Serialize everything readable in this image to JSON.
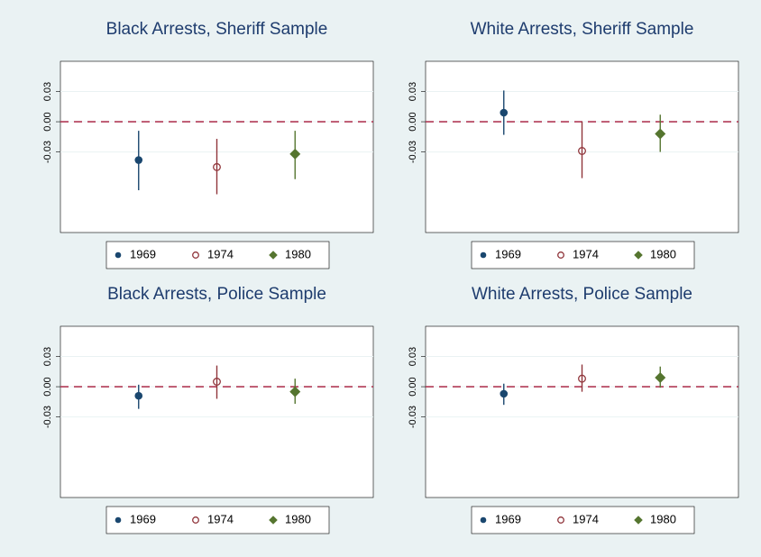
{
  "chart_data": [
    {
      "type": "errorbar",
      "title": "Black Arrests, Sheriff Sample",
      "ylim": [
        -0.11,
        0.06
      ],
      "yticks": [
        -0.03,
        {
          "value": 0,
          "label": "0.00"
        },
        0.03
      ],
      "grid": true,
      "refline": 0,
      "refline_color": "#b03a56",
      "legend_position": "bottom",
      "series": [
        {
          "name": "1969",
          "color": "#1a476f",
          "marker": "filled-circle",
          "values": [
            -0.038
          ],
          "ci_low": [
            -0.068
          ],
          "ci_high": [
            -0.009
          ]
        },
        {
          "name": "1974",
          "color": "#90353b",
          "marker": "hollow-circle",
          "values": [
            -0.045
          ],
          "ci_low": [
            -0.072
          ],
          "ci_high": [
            -0.017
          ]
        },
        {
          "name": "1980",
          "color": "#55752f",
          "marker": "diamond",
          "values": [
            -0.032
          ],
          "ci_low": [
            -0.057
          ],
          "ci_high": [
            -0.009
          ]
        }
      ]
    },
    {
      "type": "errorbar",
      "title": "White Arrests, Sheriff Sample",
      "ylim": [
        -0.11,
        0.06
      ],
      "yticks": [
        -0.03,
        {
          "value": 0,
          "label": "0.00"
        },
        0.03
      ],
      "grid": true,
      "refline": 0,
      "refline_color": "#b03a56",
      "legend_position": "bottom",
      "series": [
        {
          "name": "1969",
          "color": "#1a476f",
          "marker": "filled-circle",
          "values": [
            0.009
          ],
          "ci_low": [
            -0.013
          ],
          "ci_high": [
            0.031
          ]
        },
        {
          "name": "1974",
          "color": "#90353b",
          "marker": "hollow-circle",
          "values": [
            -0.029
          ],
          "ci_low": [
            -0.056
          ],
          "ci_high": [
            0.0
          ]
        },
        {
          "name": "1980",
          "color": "#55752f",
          "marker": "diamond",
          "values": [
            -0.012
          ],
          "ci_low": [
            -0.03
          ],
          "ci_high": [
            0.007
          ]
        }
      ]
    },
    {
      "type": "errorbar",
      "title": "Black Arrests, Police Sample",
      "ylim": [
        -0.11,
        0.06
      ],
      "yticks": [
        -0.03,
        {
          "value": 0,
          "label": "0.00"
        },
        0.03
      ],
      "grid": true,
      "refline": 0,
      "refline_color": "#b03a56",
      "legend_position": "bottom",
      "series": [
        {
          "name": "1969",
          "color": "#1a476f",
          "marker": "filled-circle",
          "values": [
            -0.009
          ],
          "ci_low": [
            -0.022
          ],
          "ci_high": [
            0.002
          ]
        },
        {
          "name": "1974",
          "color": "#90353b",
          "marker": "hollow-circle",
          "values": [
            0.005
          ],
          "ci_low": [
            -0.012
          ],
          "ci_high": [
            0.021
          ]
        },
        {
          "name": "1980",
          "color": "#55752f",
          "marker": "diamond",
          "values": [
            -0.005
          ],
          "ci_low": [
            -0.017
          ],
          "ci_high": [
            0.008
          ]
        }
      ]
    },
    {
      "type": "errorbar",
      "title": "White Arrests, Police Sample",
      "ylim": [
        -0.11,
        0.06
      ],
      "yticks": [
        -0.03,
        {
          "value": 0,
          "label": "0.00"
        },
        0.03
      ],
      "grid": true,
      "refline": 0,
      "refline_color": "#b03a56",
      "legend_position": "bottom",
      "series": [
        {
          "name": "1969",
          "color": "#1a476f",
          "marker": "filled-circle",
          "values": [
            -0.007
          ],
          "ci_low": [
            -0.018
          ],
          "ci_high": [
            0.003
          ]
        },
        {
          "name": "1974",
          "color": "#90353b",
          "marker": "hollow-circle",
          "values": [
            0.008
          ],
          "ci_low": [
            -0.005
          ],
          "ci_high": [
            0.022
          ]
        },
        {
          "name": "1980",
          "color": "#55752f",
          "marker": "diamond",
          "values": [
            0.009
          ],
          "ci_low": [
            -0.001
          ],
          "ci_high": [
            0.02
          ]
        }
      ]
    }
  ]
}
